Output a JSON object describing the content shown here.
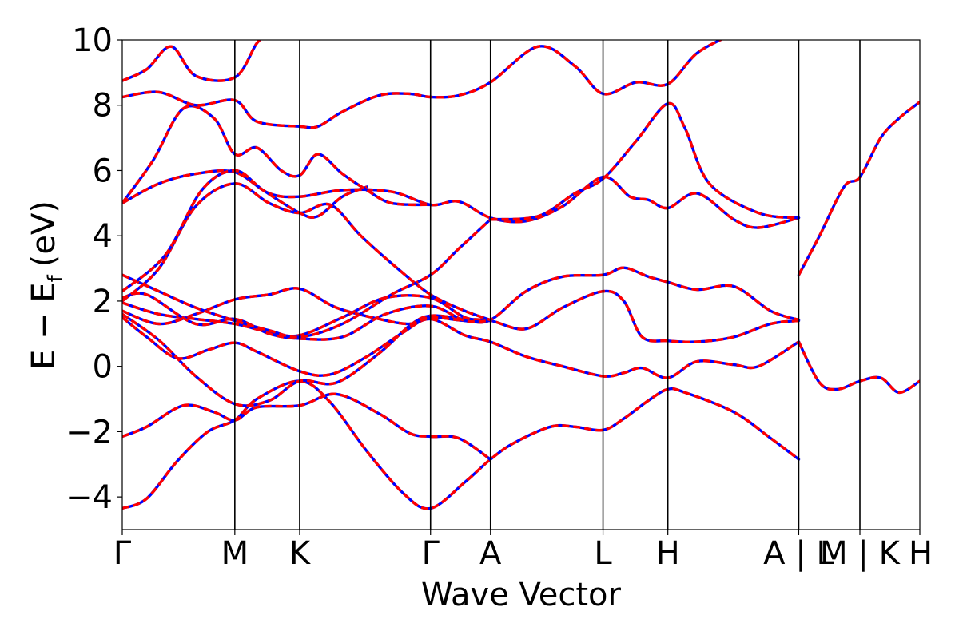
{
  "chart_data": {
    "type": "line",
    "title": "",
    "xlabel": "Wave Vector",
    "ylabel_main": "E − E",
    "ylabel_sub": "f",
    "ylabel_unit": "(eV)",
    "ylim": [
      -5,
      10
    ],
    "xlim": [
      0,
      6.52
    ],
    "yticks": [
      -4,
      -2,
      0,
      2,
      4,
      6,
      8,
      10
    ],
    "ytick_labels": [
      "−4",
      "−2",
      "0",
      "2",
      "4",
      "6",
      "8",
      "10"
    ],
    "kpoints": [
      {
        "label": "Γ",
        "x": 0
      },
      {
        "label": "M",
        "x": 0.92
      },
      {
        "label": "K",
        "x": 1.45
      },
      {
        "label": "Γ",
        "x": 2.52
      },
      {
        "label": "A",
        "x": 3.01
      },
      {
        "label": "L",
        "x": 3.93
      },
      {
        "label": "H",
        "x": 4.46
      },
      {
        "label": "A | L",
        "x": 5.53
      },
      {
        "label": "M | K",
        "x": 6.03
      },
      {
        "label": "H",
        "x": 6.52
      }
    ],
    "grid": false,
    "legend": "none",
    "series_colors": [
      "#0000ff",
      "#ff0000"
    ],
    "bands": [
      [
        [
          0,
          -4.35
        ],
        [
          0.2,
          -4.05
        ],
        [
          0.45,
          -2.9
        ],
        [
          0.7,
          -2.0
        ],
        [
          0.92,
          -1.65
        ],
        [
          1.1,
          -1.0
        ],
        [
          1.45,
          -0.45
        ],
        [
          1.7,
          -1.1
        ],
        [
          2.0,
          -2.6
        ],
        [
          2.3,
          -3.9
        ],
        [
          2.52,
          -4.35
        ],
        [
          2.8,
          -3.55
        ],
        [
          3.01,
          -2.85
        ],
        [
          3.2,
          -2.35
        ],
        [
          3.5,
          -1.85
        ],
        [
          3.7,
          -1.85
        ],
        [
          3.93,
          -1.95
        ],
        [
          4.1,
          -1.6
        ],
        [
          4.3,
          -1.05
        ],
        [
          4.46,
          -0.7
        ],
        [
          4.6,
          -0.8
        ],
        [
          5.0,
          -1.4
        ],
        [
          5.3,
          -2.2
        ],
        [
          5.53,
          -2.85
        ]
      ],
      [
        [
          0,
          -2.15
        ],
        [
          0.2,
          -1.85
        ],
        [
          0.5,
          -1.2
        ],
        [
          0.75,
          -1.4
        ],
        [
          0.92,
          -1.65
        ],
        [
          1.1,
          -1.25
        ],
        [
          1.45,
          -1.2
        ],
        [
          1.75,
          -0.85
        ],
        [
          2.1,
          -1.45
        ],
        [
          2.35,
          -2.05
        ],
        [
          2.52,
          -2.15
        ],
        [
          2.75,
          -2.2
        ],
        [
          3.01,
          -2.85
        ]
      ],
      [
        [
          0,
          1.5
        ],
        [
          0.2,
          0.9
        ],
        [
          0.45,
          0.25
        ],
        [
          0.7,
          0.5
        ],
        [
          0.92,
          0.72
        ],
        [
          1.1,
          0.45
        ],
        [
          1.45,
          -0.15
        ],
        [
          1.7,
          -0.25
        ],
        [
          2.0,
          0.3
        ],
        [
          2.3,
          1.05
        ],
        [
          2.52,
          1.45
        ],
        [
          2.8,
          0.95
        ],
        [
          3.01,
          0.75
        ],
        [
          3.3,
          0.3
        ],
        [
          3.6,
          0.0
        ],
        [
          3.93,
          -0.3
        ],
        [
          4.1,
          -0.2
        ],
        [
          4.25,
          -0.05
        ],
        [
          4.46,
          -0.35
        ],
        [
          4.7,
          0.15
        ],
        [
          5.0,
          0.05
        ],
        [
          5.2,
          0.0
        ],
        [
          5.53,
          0.75
        ]
      ],
      [
        [
          0,
          1.6
        ],
        [
          0.3,
          0.8
        ],
        [
          0.6,
          -0.3
        ],
        [
          0.92,
          -1.15
        ],
        [
          1.2,
          -1.05
        ],
        [
          1.45,
          -0.45
        ],
        [
          1.75,
          -0.5
        ],
        [
          2.1,
          0.4
        ],
        [
          2.35,
          1.25
        ],
        [
          2.52,
          1.55
        ],
        [
          2.8,
          1.45
        ],
        [
          3.01,
          1.4
        ],
        [
          3.3,
          1.15
        ],
        [
          3.6,
          1.8
        ],
        [
          3.93,
          2.3
        ],
        [
          4.1,
          2.0
        ],
        [
          4.25,
          0.9
        ],
        [
          4.46,
          0.78
        ],
        [
          4.7,
          0.75
        ],
        [
          5.0,
          0.9
        ],
        [
          5.3,
          1.3
        ],
        [
          5.53,
          1.4
        ]
      ],
      [
        [
          0,
          1.7
        ],
        [
          0.3,
          1.3
        ],
        [
          0.6,
          1.6
        ],
        [
          0.92,
          2.05
        ],
        [
          1.2,
          2.2
        ],
        [
          1.45,
          2.38
        ],
        [
          1.75,
          1.8
        ],
        [
          2.1,
          1.45
        ],
        [
          2.35,
          1.3
        ],
        [
          2.52,
          1.5
        ],
        [
          2.8,
          1.4
        ],
        [
          3.01,
          1.42
        ],
        [
          3.3,
          2.3
        ],
        [
          3.6,
          2.75
        ],
        [
          3.93,
          2.8
        ],
        [
          4.1,
          3.02
        ],
        [
          4.3,
          2.75
        ],
        [
          4.46,
          2.58
        ],
        [
          4.7,
          2.35
        ],
        [
          5.0,
          2.45
        ],
        [
          5.3,
          1.7
        ],
        [
          5.53,
          1.42
        ]
      ],
      [
        [
          0,
          1.95
        ],
        [
          0.3,
          1.6
        ],
        [
          0.6,
          1.45
        ],
        [
          0.92,
          1.3
        ],
        [
          1.2,
          1.05
        ],
        [
          1.45,
          0.95
        ],
        [
          1.8,
          1.5
        ],
        [
          2.15,
          2.1
        ],
        [
          2.52,
          2.1
        ],
        [
          2.8,
          1.5
        ],
        [
          3.01,
          1.4
        ]
      ],
      [
        [
          0,
          2.1
        ],
        [
          0.2,
          2.2
        ],
        [
          0.6,
          1.3
        ],
        [
          0.92,
          1.45
        ],
        [
          1.2,
          1.0
        ],
        [
          1.45,
          0.85
        ],
        [
          1.8,
          0.9
        ],
        [
          2.15,
          1.6
        ],
        [
          2.52,
          1.85
        ],
        [
          2.8,
          1.4
        ],
        [
          3.01,
          1.4
        ]
      ],
      [
        [
          0,
          2.8
        ],
        [
          0.3,
          2.3
        ],
        [
          0.6,
          1.8
        ],
        [
          0.92,
          1.4
        ],
        [
          1.2,
          1.1
        ],
        [
          1.45,
          0.9
        ],
        [
          1.8,
          1.3
        ],
        [
          2.2,
          2.2
        ],
        [
          2.52,
          2.8
        ],
        [
          2.75,
          3.6
        ],
        [
          3.01,
          4.5
        ]
      ],
      [
        [
          0,
          5.0
        ],
        [
          0.3,
          5.6
        ],
        [
          0.6,
          5.9
        ],
        [
          0.92,
          5.95
        ],
        [
          1.2,
          5.3
        ],
        [
          1.45,
          5.2
        ],
        [
          1.8,
          5.4
        ],
        [
          2.2,
          5.35
        ],
        [
          2.52,
          4.95
        ],
        [
          2.75,
          5.05
        ],
        [
          3.01,
          4.55
        ],
        [
          3.3,
          4.45
        ],
        [
          3.6,
          4.9
        ],
        [
          3.93,
          5.8
        ],
        [
          4.15,
          5.2
        ],
        [
          4.3,
          5.1
        ],
        [
          4.46,
          4.85
        ],
        [
          4.7,
          5.3
        ],
        [
          5.0,
          4.5
        ],
        [
          5.2,
          4.25
        ],
        [
          5.53,
          4.55
        ]
      ],
      [
        [
          0,
          2.0
        ],
        [
          0.3,
          3.0
        ],
        [
          0.6,
          4.9
        ],
        [
          0.92,
          5.6
        ],
        [
          1.2,
          5.0
        ],
        [
          1.45,
          4.7
        ],
        [
          1.7,
          4.95
        ],
        [
          1.95,
          4.0
        ],
        [
          2.25,
          3.0
        ],
        [
          2.52,
          2.2
        ],
        [
          2.8,
          1.7
        ],
        [
          3.01,
          1.42
        ]
      ],
      [
        [
          0,
          2.3
        ],
        [
          0.35,
          3.4
        ],
        [
          0.65,
          5.4
        ],
        [
          0.92,
          6.0
        ],
        [
          1.15,
          5.4
        ],
        [
          1.45,
          4.7
        ],
        [
          1.6,
          4.6
        ],
        [
          1.8,
          5.2
        ],
        [
          2.0,
          5.5
        ]
      ],
      [
        [
          0,
          5.0
        ],
        [
          0.25,
          6.3
        ],
        [
          0.5,
          7.9
        ],
        [
          0.75,
          7.6
        ],
        [
          0.92,
          6.5
        ],
        [
          1.1,
          6.7
        ],
        [
          1.3,
          6.0
        ],
        [
          1.45,
          5.85
        ],
        [
          1.6,
          6.5
        ],
        [
          1.8,
          5.9
        ],
        [
          2.0,
          5.4
        ],
        [
          2.2,
          5.0
        ],
        [
          2.52,
          4.95
        ]
      ],
      [
        [
          0,
          8.25
        ],
        [
          0.3,
          8.4
        ],
        [
          0.6,
          8.0
        ],
        [
          0.92,
          8.15
        ],
        [
          1.1,
          7.5
        ],
        [
          1.45,
          7.35
        ],
        [
          1.6,
          7.35
        ],
        [
          1.8,
          7.8
        ],
        [
          2.1,
          8.3
        ],
        [
          2.35,
          8.35
        ],
        [
          2.52,
          8.25
        ],
        [
          2.75,
          8.3
        ],
        [
          3.01,
          8.7
        ],
        [
          3.4,
          9.8
        ],
        [
          3.7,
          9.2
        ],
        [
          3.93,
          8.35
        ],
        [
          4.2,
          8.7
        ],
        [
          4.46,
          8.65
        ],
        [
          4.7,
          9.6
        ],
        [
          5.0,
          10.2
        ]
      ],
      [
        [
          0,
          8.75
        ],
        [
          0.2,
          9.1
        ],
        [
          0.4,
          9.8
        ],
        [
          0.6,
          8.9
        ],
        [
          0.92,
          8.85
        ],
        [
          1.1,
          9.9
        ],
        [
          1.2,
          10.2
        ]
      ],
      [
        [
          3.01,
          4.5
        ],
        [
          3.4,
          4.6
        ],
        [
          3.7,
          5.3
        ],
        [
          3.93,
          5.75
        ],
        [
          4.2,
          6.9
        ],
        [
          4.46,
          8.05
        ],
        [
          4.6,
          7.3
        ],
        [
          4.8,
          5.6
        ],
        [
          5.2,
          4.7
        ],
        [
          5.53,
          4.55
        ]
      ],
      [
        [
          5.53,
          0.75
        ],
        [
          5.7,
          -0.5
        ],
        [
          5.85,
          -0.7
        ],
        [
          6.03,
          -0.45
        ],
        [
          6.2,
          -0.35
        ],
        [
          6.35,
          -0.8
        ],
        [
          6.52,
          -0.45
        ]
      ],
      [
        [
          5.53,
          2.8
        ],
        [
          5.7,
          4.0
        ],
        [
          5.9,
          5.5
        ],
        [
          6.03,
          5.8
        ],
        [
          6.2,
          7.0
        ],
        [
          6.35,
          7.6
        ],
        [
          6.52,
          8.1
        ]
      ]
    ]
  }
}
